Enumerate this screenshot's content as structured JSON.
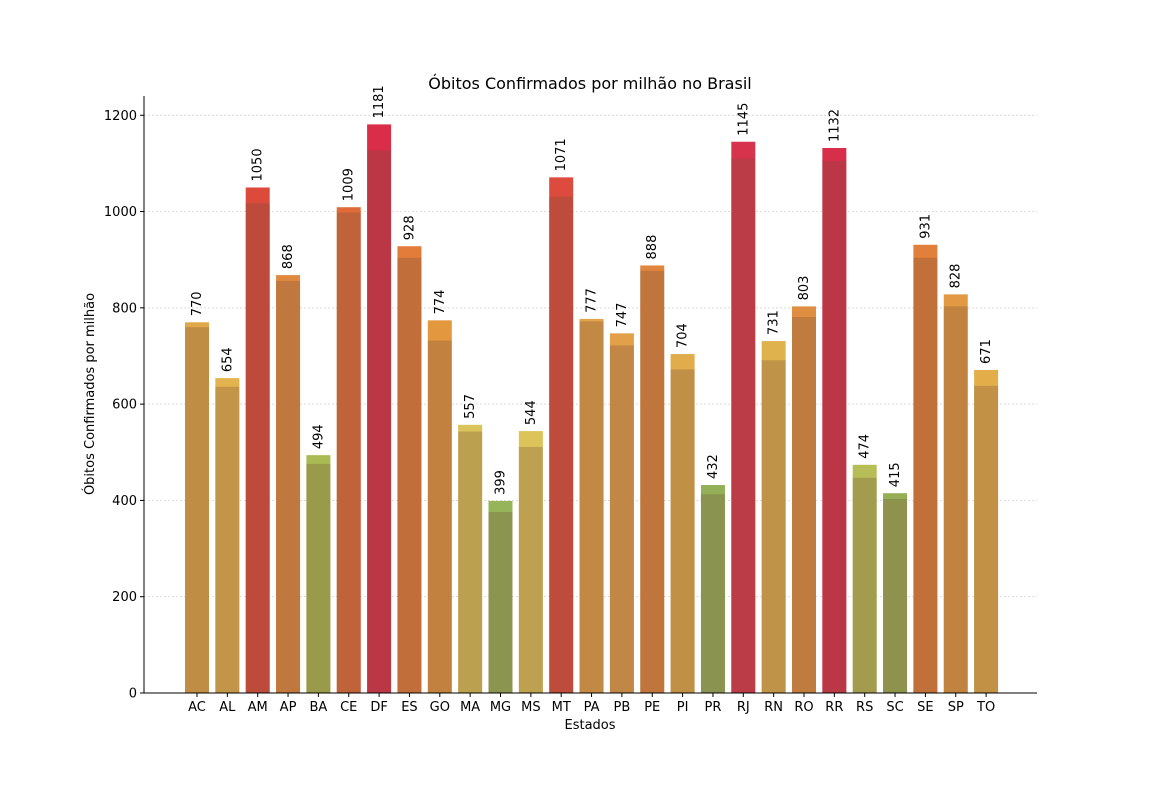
{
  "chart_data": {
    "type": "bar",
    "title": "Óbitos Confirmados por milhão no Brasil",
    "xlabel": "Estados",
    "ylabel": "Óbitos Confirmados por milhão",
    "ylim": [
      0,
      1240
    ],
    "yticks": [
      0,
      200,
      400,
      600,
      800,
      1000,
      1200
    ],
    "grid": "horizontal, dotted",
    "categories": [
      "AC",
      "AL",
      "AM",
      "AP",
      "BA",
      "CE",
      "DF",
      "ES",
      "GO",
      "MA",
      "MG",
      "MS",
      "MT",
      "PA",
      "PB",
      "PE",
      "PI",
      "PR",
      "RJ",
      "RN",
      "RO",
      "RR",
      "RS",
      "SC",
      "SE",
      "SP",
      "TO"
    ],
    "values": [
      770,
      654,
      1050,
      868,
      494,
      1009,
      1181,
      928,
      774,
      557,
      399,
      544,
      1071,
      777,
      747,
      888,
      704,
      432,
      1145,
      731,
      803,
      1132,
      474,
      415,
      931,
      828,
      671
    ],
    "overlay_values": [
      760,
      636,
      1017,
      856,
      476,
      998,
      1127,
      904,
      732,
      543,
      376,
      511,
      1031,
      772,
      722,
      877,
      672,
      413,
      1110,
      691,
      781,
      1105,
      447,
      403,
      904,
      803,
      638
    ],
    "bar_colors": [
      "#e0a84a",
      "#e2b34e",
      "#dc4a3c",
      "#e08a40",
      "#a9bb52",
      "#e06a3a",
      "#d92d49",
      "#e37b3a",
      "#e3973f",
      "#d9c35a",
      "#96b45a",
      "#dcc45a",
      "#dd4b3e",
      "#e3a348",
      "#e2a048",
      "#e0863e",
      "#e0ac4c",
      "#93b058",
      "#d8334c",
      "#e0b24e",
      "#e08f40",
      "#d72f49",
      "#b7be58",
      "#97af54",
      "#e27f3a",
      "#e39943",
      "#e3ae4a"
    ],
    "overlay_color": "rgba(120,80,60,0.30)"
  }
}
